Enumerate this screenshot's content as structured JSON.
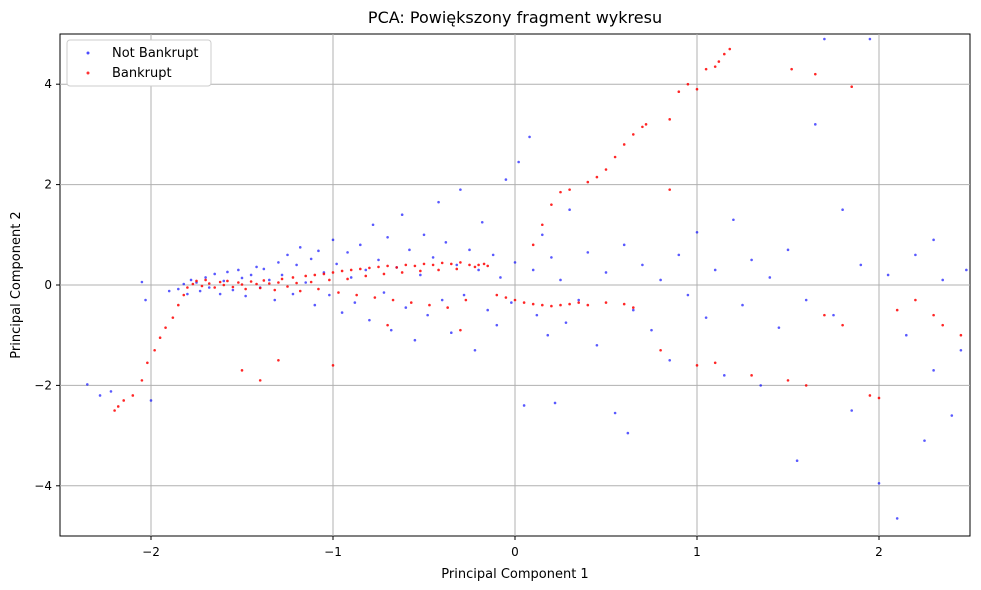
{
  "chart_data": {
    "type": "scatter",
    "title": "PCA: Powiększony fragment wykresu",
    "xlabel": "Principal Component 1",
    "ylabel": "Principal Component 2",
    "xlim": [
      -2.5,
      2.5
    ],
    "ylim": [
      -5,
      5
    ],
    "xticks": [
      -2,
      -1,
      0,
      1,
      2
    ],
    "yticks": [
      -4,
      -2,
      0,
      2,
      4
    ],
    "grid": true,
    "legend_position": "top-left",
    "series": [
      {
        "name": "Not Bankrupt",
        "color": "#0000ff",
        "points": [
          [
            -2.35,
            -1.98
          ],
          [
            -2.28,
            -2.2
          ],
          [
            -2.22,
            -2.12
          ],
          [
            -2.05,
            0.06
          ],
          [
            -2.03,
            -0.3
          ],
          [
            -2.0,
            -2.3
          ],
          [
            -1.9,
            -0.12
          ],
          [
            -1.85,
            -0.08
          ],
          [
            -1.82,
            0.02
          ],
          [
            -1.8,
            -0.18
          ],
          [
            -1.78,
            0.1
          ],
          [
            -1.75,
            0.05
          ],
          [
            -1.73,
            -0.12
          ],
          [
            -1.7,
            0.15
          ],
          [
            -1.68,
            -0.05
          ],
          [
            -1.65,
            0.22
          ],
          [
            -1.62,
            -0.18
          ],
          [
            -1.6,
            0.08
          ],
          [
            -1.58,
            0.26
          ],
          [
            -1.55,
            -0.1
          ],
          [
            -1.52,
            0.3
          ],
          [
            -1.5,
            0.14
          ],
          [
            -1.48,
            -0.22
          ],
          [
            -1.45,
            0.2
          ],
          [
            -1.42,
            0.36
          ],
          [
            -1.4,
            -0.05
          ],
          [
            -1.38,
            0.32
          ],
          [
            -1.35,
            0.1
          ],
          [
            -1.32,
            -0.3
          ],
          [
            -1.3,
            0.45
          ],
          [
            -1.28,
            0.2
          ],
          [
            -1.25,
            0.6
          ],
          [
            -1.22,
            -0.18
          ],
          [
            -1.2,
            0.4
          ],
          [
            -1.18,
            0.75
          ],
          [
            -1.15,
            0.05
          ],
          [
            -1.12,
            0.52
          ],
          [
            -1.1,
            -0.4
          ],
          [
            -1.08,
            0.68
          ],
          [
            -1.05,
            0.25
          ],
          [
            -1.02,
            -0.2
          ],
          [
            -1.0,
            0.9
          ],
          [
            -0.98,
            0.42
          ],
          [
            -0.95,
            -0.55
          ],
          [
            -0.92,
            0.65
          ],
          [
            -0.9,
            0.15
          ],
          [
            -0.88,
            -0.35
          ],
          [
            -0.85,
            0.8
          ],
          [
            -0.82,
            0.3
          ],
          [
            -0.8,
            -0.7
          ],
          [
            -0.78,
            1.2
          ],
          [
            -0.75,
            0.5
          ],
          [
            -0.72,
            -0.15
          ],
          [
            -0.7,
            0.95
          ],
          [
            -0.68,
            -0.9
          ],
          [
            -0.65,
            0.35
          ],
          [
            -0.62,
            1.4
          ],
          [
            -0.6,
            -0.45
          ],
          [
            -0.58,
            0.7
          ],
          [
            -0.55,
            -1.1
          ],
          [
            -0.52,
            0.2
          ],
          [
            -0.5,
            1.0
          ],
          [
            -0.48,
            -0.6
          ],
          [
            -0.45,
            0.55
          ],
          [
            -0.42,
            1.65
          ],
          [
            -0.4,
            -0.3
          ],
          [
            -0.38,
            0.85
          ],
          [
            -0.35,
            -0.95
          ],
          [
            -0.32,
            0.4
          ],
          [
            -0.3,
            1.9
          ],
          [
            -0.28,
            -0.2
          ],
          [
            -0.25,
            0.7
          ],
          [
            -0.22,
            -1.3
          ],
          [
            -0.2,
            0.3
          ],
          [
            -0.18,
            1.25
          ],
          [
            -0.15,
            -0.5
          ],
          [
            -0.12,
            0.6
          ],
          [
            -0.1,
            -0.8
          ],
          [
            -0.08,
            0.15
          ],
          [
            -0.05,
            2.1
          ],
          [
            -0.02,
            -0.35
          ],
          [
            0.0,
            0.45
          ],
          [
            0.02,
            2.45
          ],
          [
            0.05,
            -2.4
          ],
          [
            0.08,
            2.95
          ],
          [
            0.1,
            0.3
          ],
          [
            0.12,
            -0.6
          ],
          [
            0.15,
            1.0
          ],
          [
            0.18,
            -1.0
          ],
          [
            0.2,
            0.55
          ],
          [
            0.22,
            -2.35
          ],
          [
            0.25,
            0.1
          ],
          [
            0.28,
            -0.75
          ],
          [
            0.3,
            1.5
          ],
          [
            0.35,
            -0.3
          ],
          [
            0.4,
            0.65
          ],
          [
            0.45,
            -1.2
          ],
          [
            0.5,
            0.25
          ],
          [
            0.55,
            -2.55
          ],
          [
            0.6,
            0.8
          ],
          [
            0.62,
            -2.95
          ],
          [
            0.65,
            -0.5
          ],
          [
            0.7,
            0.4
          ],
          [
            0.75,
            -0.9
          ],
          [
            0.8,
            0.1
          ],
          [
            0.85,
            -1.5
          ],
          [
            0.9,
            0.6
          ],
          [
            0.95,
            -0.2
          ],
          [
            1.0,
            1.05
          ],
          [
            1.05,
            -0.65
          ],
          [
            1.1,
            0.3
          ],
          [
            1.15,
            -1.8
          ],
          [
            1.2,
            1.3
          ],
          [
            1.25,
            -0.4
          ],
          [
            1.3,
            0.5
          ],
          [
            1.35,
            -2.0
          ],
          [
            1.4,
            0.15
          ],
          [
            1.45,
            -0.85
          ],
          [
            1.5,
            0.7
          ],
          [
            1.55,
            -3.5
          ],
          [
            1.6,
            -0.3
          ],
          [
            1.65,
            3.2
          ],
          [
            1.7,
            4.9
          ],
          [
            1.75,
            -0.6
          ],
          [
            1.8,
            1.5
          ],
          [
            1.85,
            -2.5
          ],
          [
            1.9,
            0.4
          ],
          [
            1.95,
            4.9
          ],
          [
            2.0,
            -3.95
          ],
          [
            2.05,
            0.2
          ],
          [
            2.1,
            -4.65
          ],
          [
            2.15,
            -1.0
          ],
          [
            2.2,
            0.6
          ],
          [
            2.25,
            -3.1
          ],
          [
            2.3,
            -1.7
          ],
          [
            2.35,
            0.1
          ],
          [
            2.4,
            -2.6
          ],
          [
            2.45,
            -1.3
          ],
          [
            2.48,
            0.3
          ],
          [
            2.3,
            0.9
          ]
        ]
      },
      {
        "name": "Bankrupt",
        "color": "#ff0000",
        "points": [
          [
            -2.2,
            -2.5
          ],
          [
            -2.18,
            -2.42
          ],
          [
            -2.15,
            -2.3
          ],
          [
            -2.1,
            -2.2
          ],
          [
            -2.05,
            -1.9
          ],
          [
            -2.02,
            -1.55
          ],
          [
            -1.98,
            -1.3
          ],
          [
            -1.95,
            -1.05
          ],
          [
            -1.92,
            -0.85
          ],
          [
            -1.88,
            -0.65
          ],
          [
            -1.85,
            -0.4
          ],
          [
            -1.82,
            -0.2
          ],
          [
            -1.8,
            -0.05
          ],
          [
            -1.77,
            0.02
          ],
          [
            -1.75,
            0.08
          ],
          [
            -1.72,
            -0.02
          ],
          [
            -1.7,
            0.1
          ],
          [
            -1.68,
            0.03
          ],
          [
            -1.65,
            -0.05
          ],
          [
            -1.62,
            0.06
          ],
          [
            -1.6,
            0.0
          ],
          [
            -1.58,
            0.08
          ],
          [
            -1.55,
            -0.04
          ],
          [
            -1.52,
            0.05
          ],
          [
            -1.5,
            0.01
          ],
          [
            -1.48,
            -0.08
          ],
          [
            -1.45,
            0.07
          ],
          [
            -1.42,
            0.02
          ],
          [
            -1.4,
            -0.06
          ],
          [
            -1.38,
            0.09
          ],
          [
            -1.35,
            0.03
          ],
          [
            -1.32,
            -0.1
          ],
          [
            -1.3,
            0.05
          ],
          [
            -1.28,
            0.12
          ],
          [
            -1.25,
            -0.03
          ],
          [
            -1.22,
            0.15
          ],
          [
            -1.2,
            0.04
          ],
          [
            -1.18,
            -0.12
          ],
          [
            -1.15,
            0.18
          ],
          [
            -1.12,
            0.06
          ],
          [
            -1.1,
            0.2
          ],
          [
            -1.08,
            -0.08
          ],
          [
            -1.05,
            0.22
          ],
          [
            -1.02,
            0.1
          ],
          [
            -1.0,
            0.25
          ],
          [
            -0.97,
            -0.15
          ],
          [
            -0.95,
            0.28
          ],
          [
            -0.92,
            0.12
          ],
          [
            -0.9,
            0.3
          ],
          [
            -0.87,
            -0.2
          ],
          [
            -0.85,
            0.32
          ],
          [
            -0.82,
            0.18
          ],
          [
            -0.8,
            0.34
          ],
          [
            -0.77,
            -0.25
          ],
          [
            -0.75,
            0.36
          ],
          [
            -0.72,
            0.22
          ],
          [
            -0.7,
            0.38
          ],
          [
            -0.67,
            -0.3
          ],
          [
            -0.65,
            0.35
          ],
          [
            -0.62,
            0.25
          ],
          [
            -0.6,
            0.4
          ],
          [
            -0.57,
            -0.35
          ],
          [
            -0.55,
            0.38
          ],
          [
            -0.52,
            0.28
          ],
          [
            -0.5,
            0.42
          ],
          [
            -0.47,
            -0.4
          ],
          [
            -0.45,
            0.4
          ],
          [
            -0.42,
            0.3
          ],
          [
            -0.4,
            0.44
          ],
          [
            -0.37,
            -0.45
          ],
          [
            -0.35,
            0.42
          ],
          [
            -0.32,
            0.32
          ],
          [
            -0.3,
            0.45
          ],
          [
            -0.27,
            -0.3
          ],
          [
            -0.25,
            0.4
          ],
          [
            -0.22,
            0.36
          ],
          [
            -0.2,
            0.4
          ],
          [
            -0.17,
            0.42
          ],
          [
            -0.15,
            0.38
          ],
          [
            -0.1,
            -0.2
          ],
          [
            -0.05,
            -0.25
          ],
          [
            0.0,
            -0.3
          ],
          [
            0.05,
            -0.35
          ],
          [
            0.1,
            -0.38
          ],
          [
            0.15,
            -0.4
          ],
          [
            0.2,
            -0.42
          ],
          [
            0.25,
            -0.4
          ],
          [
            0.3,
            -0.38
          ],
          [
            0.35,
            -0.35
          ],
          [
            0.4,
            -0.4
          ],
          [
            0.5,
            -0.35
          ],
          [
            0.6,
            -0.38
          ],
          [
            0.65,
            -0.45
          ],
          [
            0.1,
            0.8
          ],
          [
            0.15,
            1.2
          ],
          [
            0.2,
            1.6
          ],
          [
            0.25,
            1.85
          ],
          [
            0.3,
            1.9
          ],
          [
            0.4,
            2.05
          ],
          [
            0.45,
            2.15
          ],
          [
            0.5,
            2.3
          ],
          [
            0.55,
            2.55
          ],
          [
            0.6,
            2.8
          ],
          [
            0.65,
            3.0
          ],
          [
            0.7,
            3.15
          ],
          [
            0.72,
            3.2
          ],
          [
            0.85,
            3.3
          ],
          [
            0.9,
            3.85
          ],
          [
            0.95,
            4.0
          ],
          [
            1.0,
            3.9
          ],
          [
            1.05,
            4.3
          ],
          [
            1.1,
            4.35
          ],
          [
            1.12,
            4.45
          ],
          [
            1.15,
            4.6
          ],
          [
            1.18,
            4.7
          ],
          [
            1.52,
            4.3
          ],
          [
            1.65,
            4.2
          ],
          [
            1.85,
            3.95
          ],
          [
            0.85,
            1.9
          ],
          [
            -1.5,
            -1.7
          ],
          [
            -1.4,
            -1.9
          ],
          [
            -1.3,
            -1.5
          ],
          [
            -1.0,
            -1.6
          ],
          [
            -0.7,
            -0.8
          ],
          [
            -0.3,
            -0.9
          ],
          [
            0.8,
            -1.3
          ],
          [
            1.0,
            -1.6
          ],
          [
            1.1,
            -1.55
          ],
          [
            1.3,
            -1.8
          ],
          [
            1.5,
            -1.9
          ],
          [
            1.6,
            -2.0
          ],
          [
            1.7,
            -0.6
          ],
          [
            1.8,
            -0.8
          ],
          [
            1.95,
            -2.2
          ],
          [
            2.0,
            -2.25
          ],
          [
            2.1,
            -0.5
          ],
          [
            2.2,
            -0.3
          ],
          [
            2.3,
            -0.6
          ],
          [
            2.35,
            -0.8
          ],
          [
            2.45,
            -1.0
          ]
        ]
      }
    ]
  }
}
